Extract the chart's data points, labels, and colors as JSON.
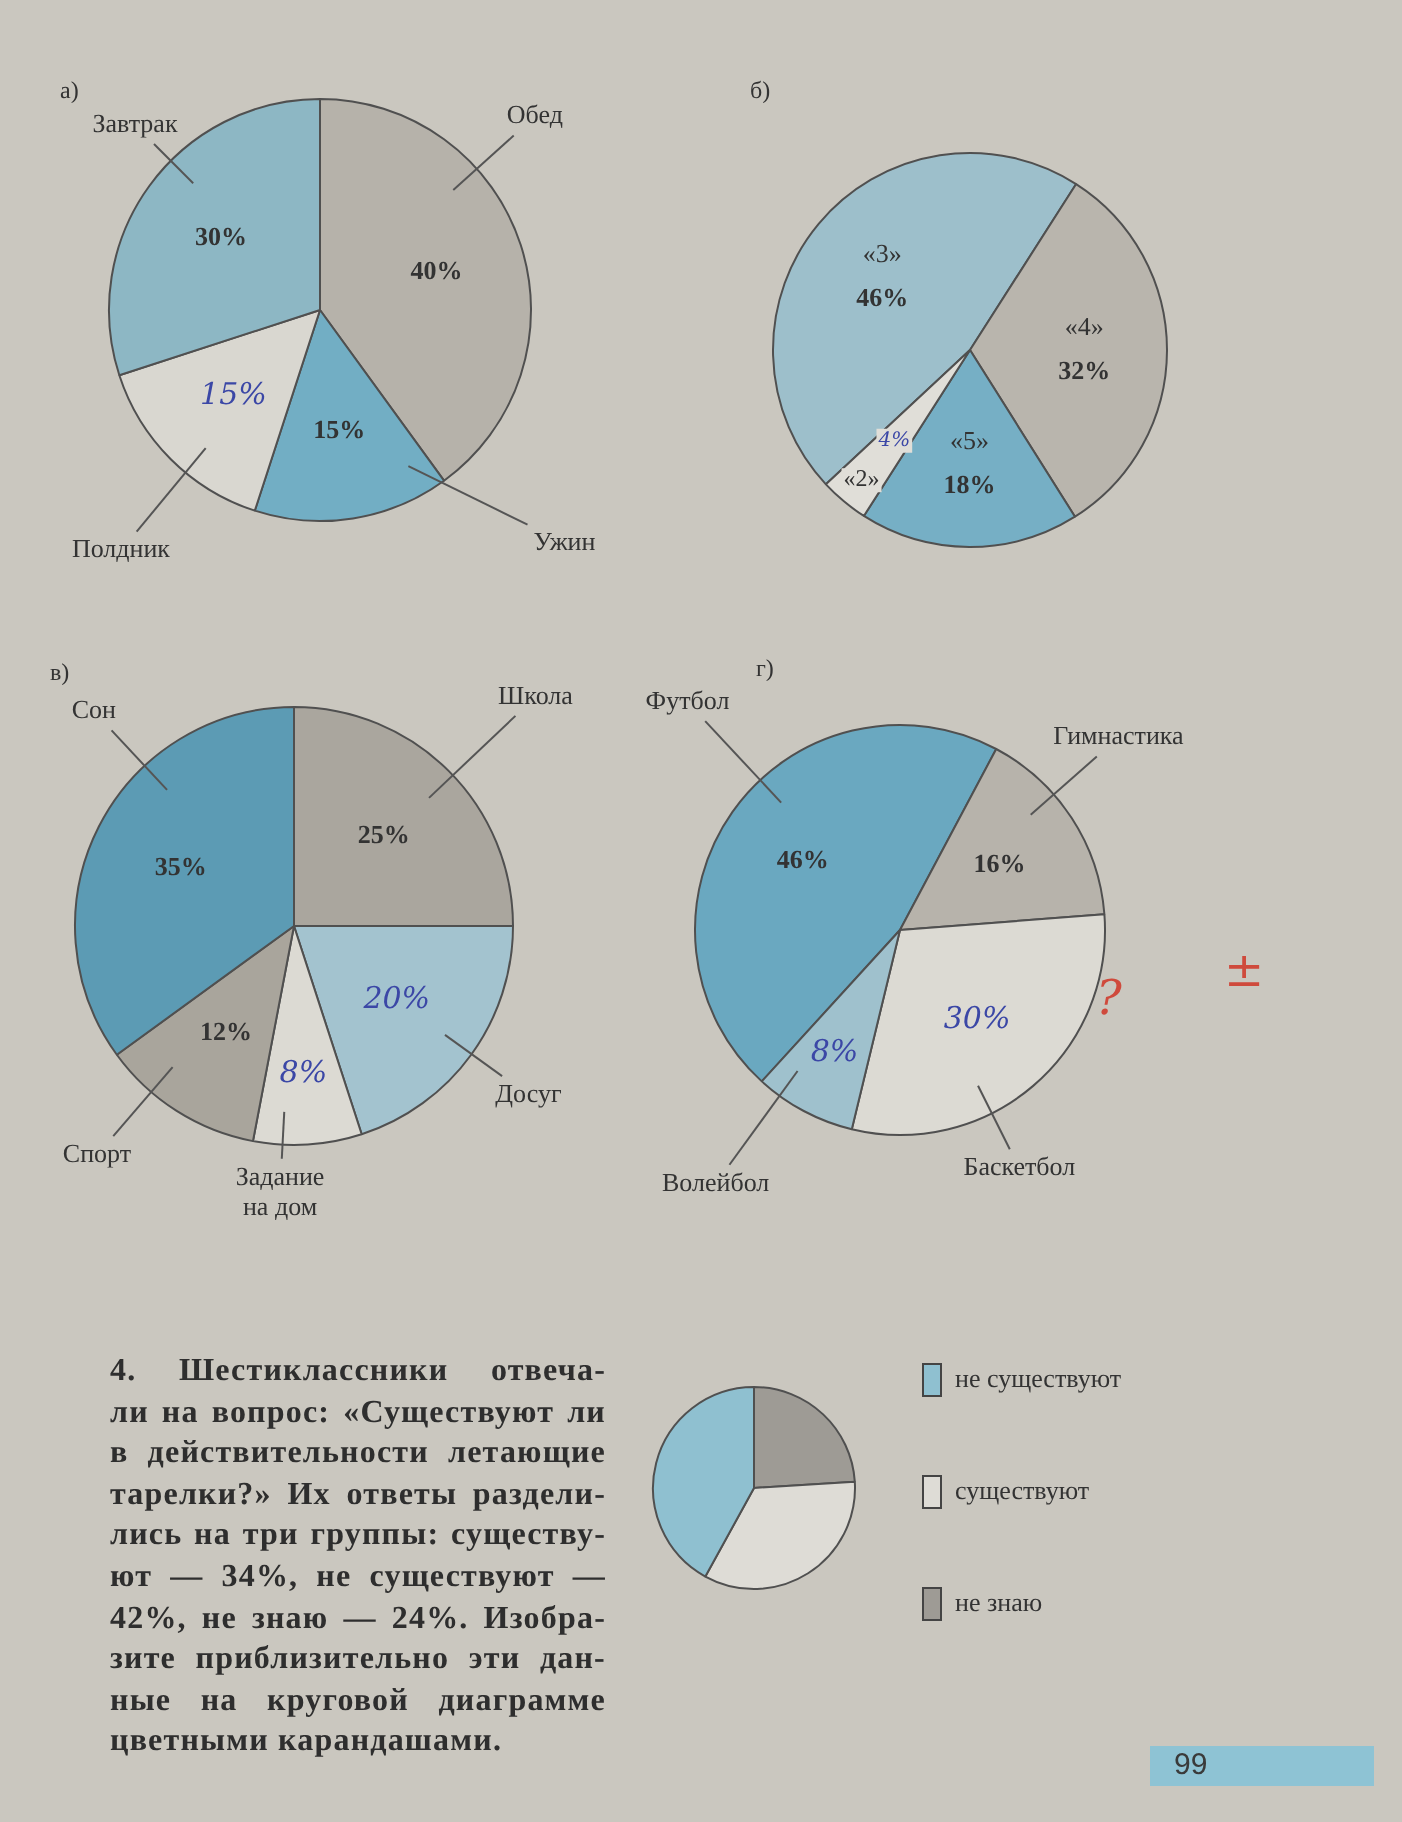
{
  "chart_data": [
    {
      "type": "pie",
      "title": "а)",
      "categories": [
        "Обед",
        "Ужин",
        "Полдник",
        "Завтрак"
      ],
      "values": [
        40,
        15,
        15,
        30
      ],
      "colors": [
        "#b6b2aa",
        "#72aec4",
        "#d9d7d0",
        "#8db7c4"
      ],
      "value_labels": [
        "40%",
        "15%",
        "15%",
        "30%"
      ]
    },
    {
      "type": "pie",
      "title": "б)",
      "categories": [
        "«3»",
        "«4»",
        "«5»",
        "«2»"
      ],
      "values": [
        46,
        32,
        18,
        4
      ],
      "colors": [
        "#9dbfcb",
        "#b9b5ad",
        "#76afc5",
        "#e0ded8"
      ],
      "value_labels": [
        "46%",
        "32%",
        "18%",
        "4%"
      ]
    },
    {
      "type": "pie",
      "title": "в)",
      "categories": [
        "Школа",
        "Досуг",
        "Задание на дом",
        "Спорт",
        "Сон"
      ],
      "values": [
        25,
        20,
        8,
        12,
        35
      ],
      "colors": [
        "#aaa69e",
        "#a3c3cf",
        "#dcdad3",
        "#a9a59c",
        "#5c9bb4"
      ],
      "value_labels": [
        "25%",
        "20%",
        "8%",
        "12%",
        "35%"
      ]
    },
    {
      "type": "pie",
      "title": "г)",
      "categories": [
        "Футбол",
        "Гимнастика",
        "Баскетбол",
        "Волейбол"
      ],
      "values": [
        46,
        16,
        30,
        8
      ],
      "colors": [
        "#6aa8c0",
        "#b7b3ab",
        "#dcdad3",
        "#9fc1cd"
      ],
      "value_labels": [
        "46%",
        "16%",
        "30%",
        "8%"
      ],
      "annotations": [
        "?",
        "±"
      ]
    },
    {
      "type": "pie",
      "categories": [
        "не существуют",
        "существуют",
        "не знаю"
      ],
      "values": [
        42,
        34,
        24
      ],
      "colors": [
        "#8fc0d0",
        "#dedcd6",
        "#9e9b95"
      ],
      "legend": "right",
      "annotations": [
        "4. Шестиклассники отвеча-\nли на вопрос: «Существуют ли\nв действительности летающие\nтарелки?» Их ответы раздели-\nлись на три группы: существу-\nют — 34%, не существуют —\n42%, не знаю — 24%. Изобра-\nзите приблизительно эти дан-\nные на круговой диаграмме\nцветными карандашами.",
        "99"
      ]
    }
  ]
}
